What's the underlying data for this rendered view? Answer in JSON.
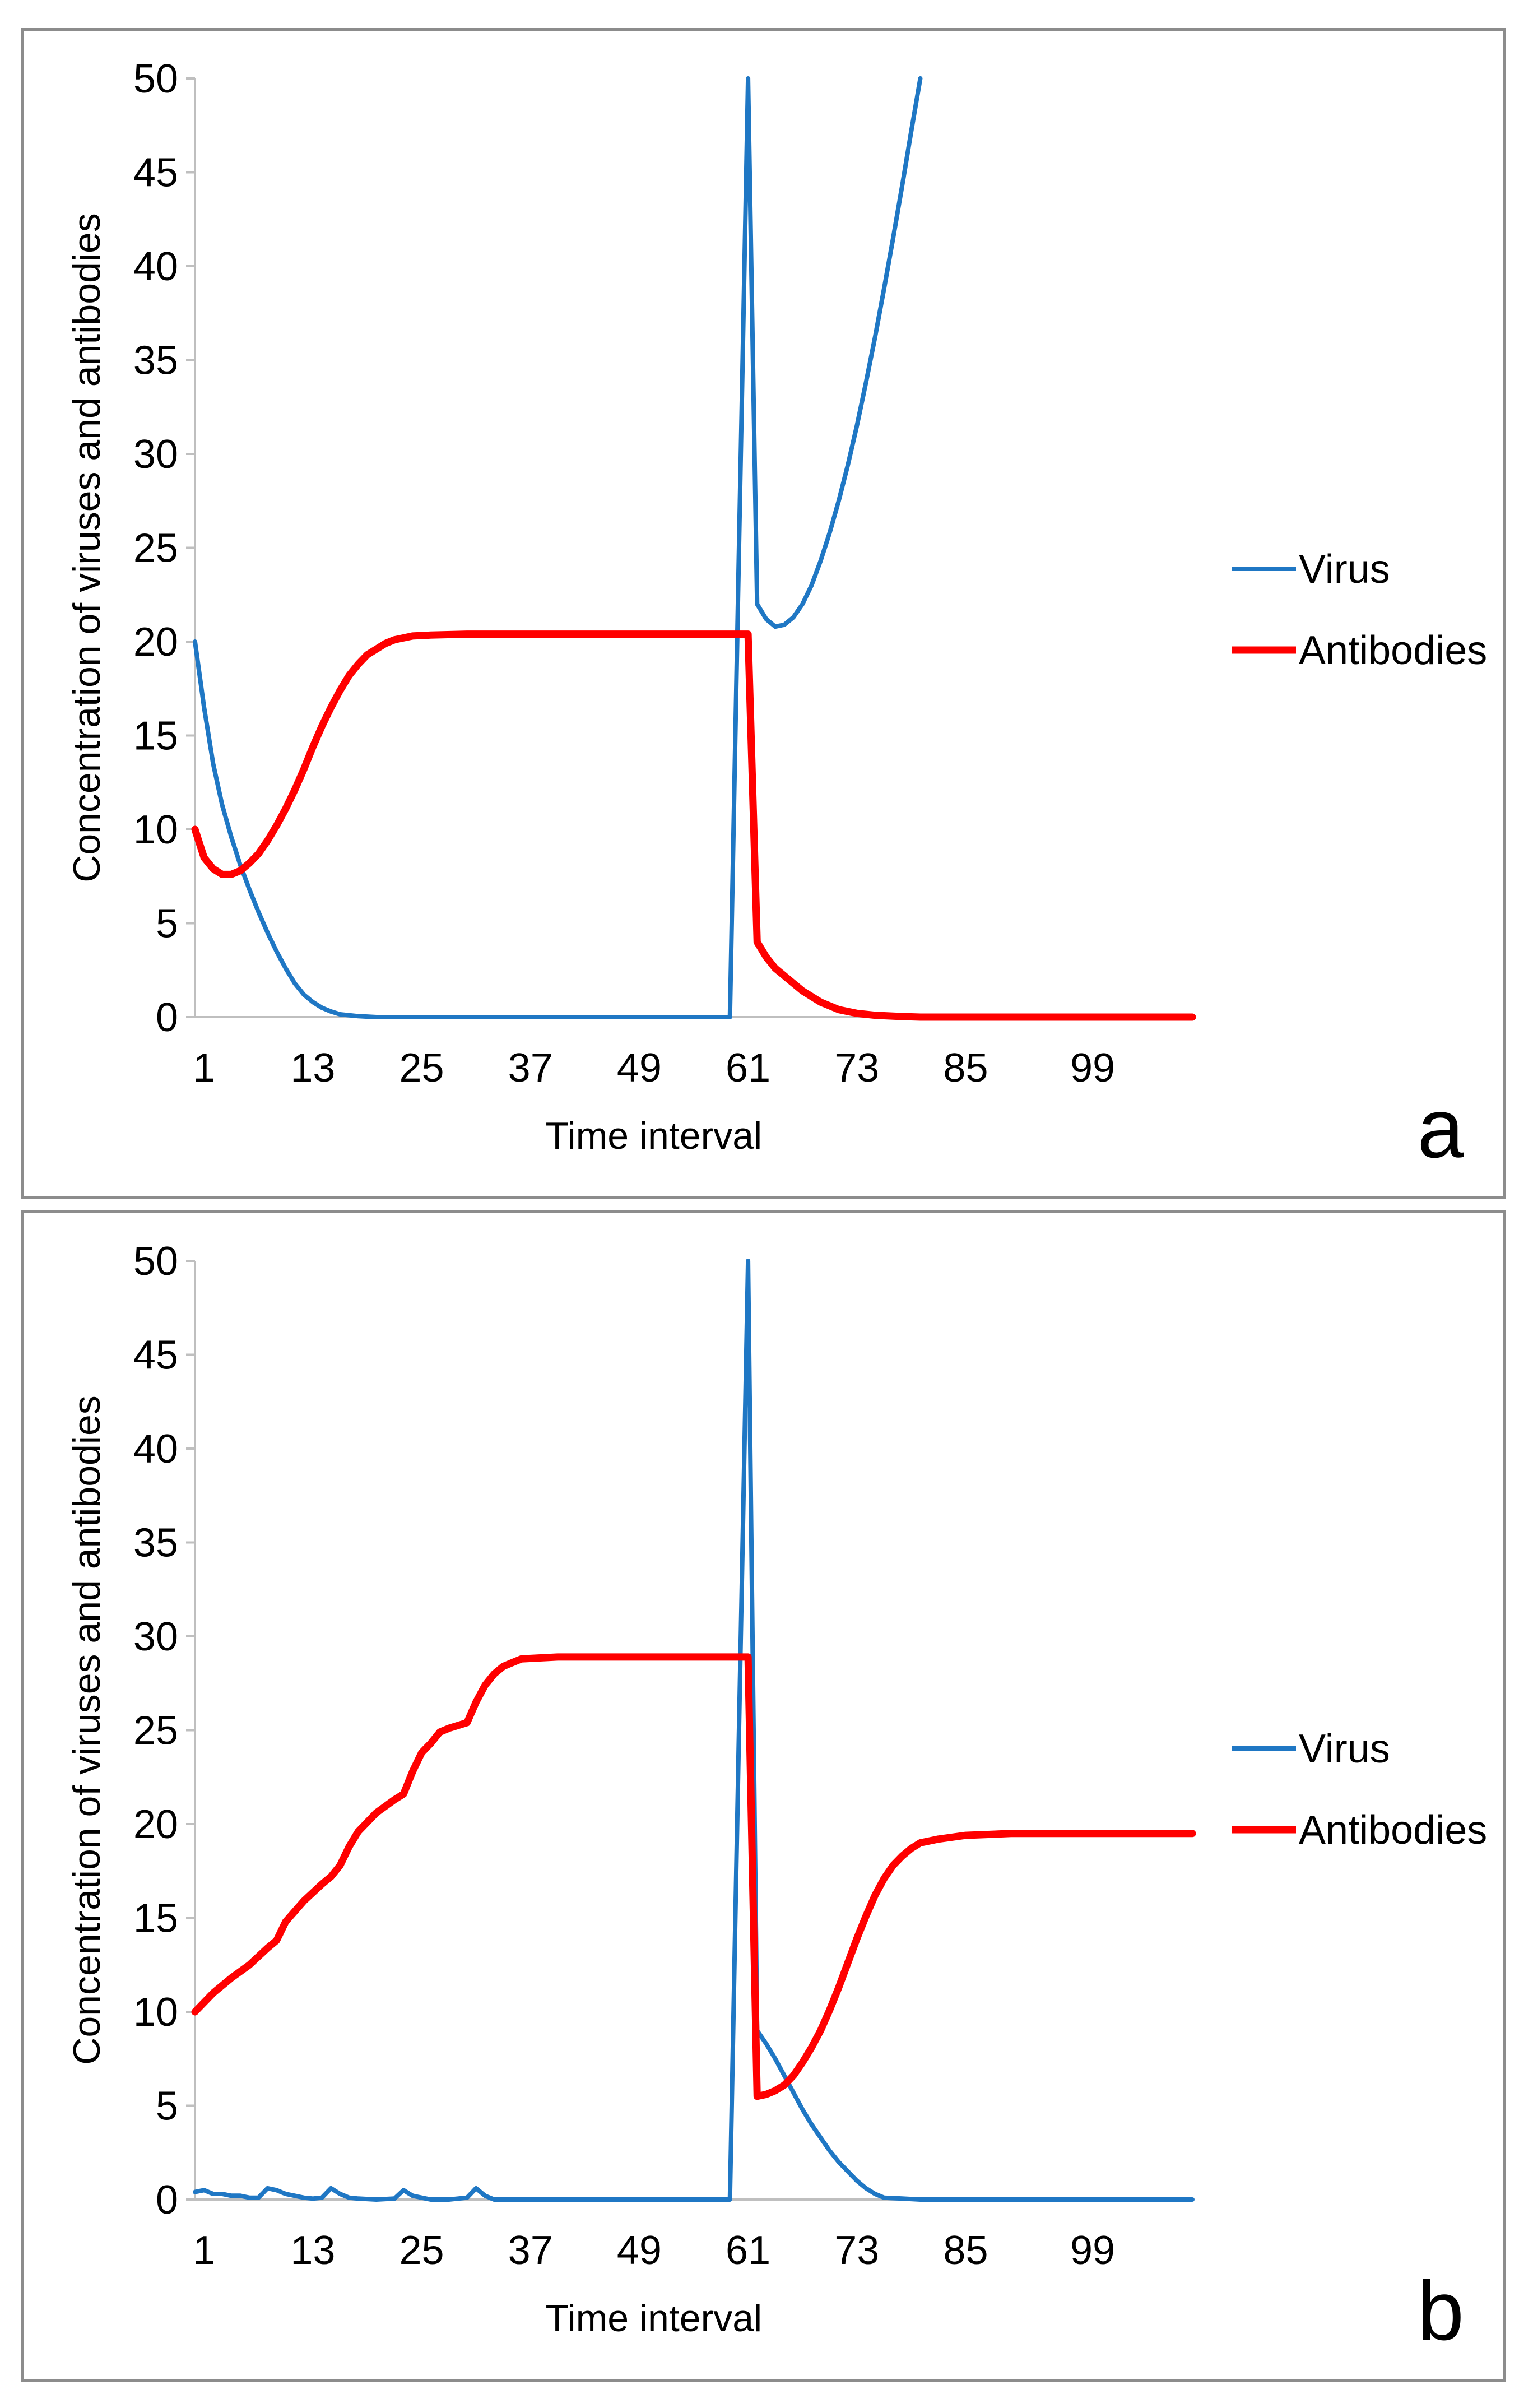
{
  "chart_data": [
    {
      "type": "line",
      "panel_label": "a",
      "xlabel": "Time interval",
      "ylabel": "Concentration of  viruses and antibodies",
      "ylim": [
        0,
        50
      ],
      "yticks": [
        "0",
        "5",
        "10",
        "15",
        "20",
        "25",
        "30",
        "35",
        "40",
        "45",
        "50"
      ],
      "xrange": [
        0,
        110
      ],
      "xtick_values": [
        1,
        13,
        25,
        37,
        49,
        61,
        73,
        85,
        99
      ],
      "xticks": [
        "1",
        "13",
        "25",
        "37",
        "49",
        "61",
        "73",
        "85",
        "99"
      ],
      "legend_position": "right",
      "series": [
        {
          "name": "Virus",
          "color": "#1f77c4",
          "points": [
            [
              0,
              20
            ],
            [
              1,
              16.5
            ],
            [
              2,
              13.5
            ],
            [
              3,
              11.3
            ],
            [
              4,
              9.6
            ],
            [
              5,
              8.1
            ],
            [
              6,
              6.8
            ],
            [
              7,
              5.6
            ],
            [
              8,
              4.5
            ],
            [
              9,
              3.5
            ],
            [
              10,
              2.6
            ],
            [
              11,
              1.8
            ],
            [
              12,
              1.2
            ],
            [
              13,
              0.8
            ],
            [
              14,
              0.5
            ],
            [
              15,
              0.3
            ],
            [
              16,
              0.15
            ],
            [
              18,
              0.05
            ],
            [
              20,
              0
            ],
            [
              40,
              0
            ],
            [
              55,
              0
            ],
            [
              59,
              0
            ],
            [
              61,
              50
            ],
            [
              62,
              22
            ],
            [
              63,
              21.2
            ],
            [
              64,
              20.8
            ],
            [
              65,
              20.9
            ],
            [
              66,
              21.3
            ],
            [
              67,
              22
            ],
            [
              68,
              23
            ],
            [
              69,
              24.3
            ],
            [
              70,
              25.8
            ],
            [
              71,
              27.5
            ],
            [
              72,
              29.4
            ],
            [
              73,
              31.5
            ],
            [
              74,
              33.8
            ],
            [
              75,
              36.2
            ],
            [
              76,
              38.8
            ],
            [
              77,
              41.5
            ],
            [
              78,
              44.3
            ],
            [
              79,
              47.2
            ],
            [
              80,
              50
            ]
          ]
        },
        {
          "name": "Antibodies",
          "color": "#ff0000",
          "points": [
            [
              0,
              10
            ],
            [
              1,
              8.5
            ],
            [
              2,
              7.9
            ],
            [
              3,
              7.6
            ],
            [
              4,
              7.6
            ],
            [
              5,
              7.8
            ],
            [
              6,
              8.2
            ],
            [
              7,
              8.7
            ],
            [
              8,
              9.4
            ],
            [
              9,
              10.2
            ],
            [
              10,
              11.1
            ],
            [
              11,
              12.1
            ],
            [
              12,
              13.2
            ],
            [
              13,
              14.4
            ],
            [
              14,
              15.5
            ],
            [
              15,
              16.5
            ],
            [
              16,
              17.4
            ],
            [
              17,
              18.2
            ],
            [
              18,
              18.8
            ],
            [
              19,
              19.3
            ],
            [
              20,
              19.6
            ],
            [
              21,
              19.9
            ],
            [
              22,
              20.1
            ],
            [
              23,
              20.2
            ],
            [
              24,
              20.3
            ],
            [
              26,
              20.35
            ],
            [
              30,
              20.4
            ],
            [
              60,
              20.4
            ],
            [
              61,
              20.4
            ],
            [
              62,
              4
            ],
            [
              63,
              3.2
            ],
            [
              64,
              2.6
            ],
            [
              65,
              2.2
            ],
            [
              66,
              1.8
            ],
            [
              67,
              1.4
            ],
            [
              68,
              1.1
            ],
            [
              69,
              0.8
            ],
            [
              70,
              0.6
            ],
            [
              71,
              0.4
            ],
            [
              72,
              0.3
            ],
            [
              73,
              0.2
            ],
            [
              75,
              0.1
            ],
            [
              78,
              0.03
            ],
            [
              80,
              0
            ],
            [
              110,
              0
            ]
          ]
        }
      ]
    },
    {
      "type": "line",
      "panel_label": "b",
      "xlabel": "Time interval",
      "ylabel": "Concentration of  viruses and antibodies",
      "ylim": [
        0,
        50
      ],
      "yticks": [
        "0",
        "5",
        "10",
        "15",
        "20",
        "25",
        "30",
        "35",
        "40",
        "45",
        "50"
      ],
      "xrange": [
        0,
        110
      ],
      "xtick_values": [
        1,
        13,
        25,
        37,
        49,
        61,
        73,
        85,
        99
      ],
      "xticks": [
        "1",
        "13",
        "25",
        "37",
        "49",
        "61",
        "73",
        "85",
        "99"
      ],
      "legend_position": "right",
      "series": [
        {
          "name": "Virus",
          "color": "#1f77c4",
          "points": [
            [
              0,
              0.4
            ],
            [
              1,
              0.5
            ],
            [
              2,
              0.3
            ],
            [
              3,
              0.3
            ],
            [
              4,
              0.2
            ],
            [
              5,
              0.2
            ],
            [
              6,
              0.1
            ],
            [
              7,
              0.1
            ],
            [
              8,
              0.6
            ],
            [
              9,
              0.5
            ],
            [
              10,
              0.3
            ],
            [
              11,
              0.2
            ],
            [
              12,
              0.1
            ],
            [
              13,
              0.05
            ],
            [
              14,
              0.1
            ],
            [
              15,
              0.6
            ],
            [
              16,
              0.3
            ],
            [
              17,
              0.1
            ],
            [
              18,
              0.05
            ],
            [
              20,
              0
            ],
            [
              22,
              0.05
            ],
            [
              23,
              0.5
            ],
            [
              24,
              0.2
            ],
            [
              25,
              0.1
            ],
            [
              26,
              0
            ],
            [
              28,
              0
            ],
            [
              30,
              0.1
            ],
            [
              31,
              0.6
            ],
            [
              32,
              0.2
            ],
            [
              33,
              0
            ],
            [
              40,
              0
            ],
            [
              50,
              0
            ],
            [
              59,
              0
            ],
            [
              61,
              50
            ],
            [
              62,
              9
            ],
            [
              63,
              8.3
            ],
            [
              64,
              7.5
            ],
            [
              65,
              6.6
            ],
            [
              66,
              5.7
            ],
            [
              67,
              4.8
            ],
            [
              68,
              4
            ],
            [
              69,
              3.3
            ],
            [
              70,
              2.6
            ],
            [
              71,
              2
            ],
            [
              72,
              1.5
            ],
            [
              73,
              1
            ],
            [
              74,
              0.6
            ],
            [
              75,
              0.3
            ],
            [
              76,
              0.1
            ],
            [
              78,
              0.05
            ],
            [
              80,
              0
            ],
            [
              110,
              0
            ]
          ]
        },
        {
          "name": "Antibodies",
          "color": "#ff0000",
          "points": [
            [
              0,
              10
            ],
            [
              2,
              11
            ],
            [
              4,
              11.8
            ],
            [
              6,
              12.5
            ],
            [
              8,
              13.4
            ],
            [
              9,
              13.8
            ],
            [
              10,
              14.8
            ],
            [
              12,
              15.9
            ],
            [
              14,
              16.8
            ],
            [
              15,
              17.2
            ],
            [
              16,
              17.8
            ],
            [
              17,
              18.8
            ],
            [
              18,
              19.6
            ],
            [
              20,
              20.6
            ],
            [
              22,
              21.3
            ],
            [
              23,
              21.6
            ],
            [
              24,
              22.8
            ],
            [
              25,
              23.8
            ],
            [
              26,
              24.3
            ],
            [
              27,
              24.9
            ],
            [
              28,
              25.1
            ],
            [
              30,
              25.4
            ],
            [
              31,
              26.5
            ],
            [
              32,
              27.4
            ],
            [
              33,
              28
            ],
            [
              34,
              28.4
            ],
            [
              35,
              28.6
            ],
            [
              36,
              28.8
            ],
            [
              40,
              28.9
            ],
            [
              60,
              28.9
            ],
            [
              61,
              28.9
            ],
            [
              62,
              5.5
            ],
            [
              63,
              5.6
            ],
            [
              64,
              5.8
            ],
            [
              65,
              6.1
            ],
            [
              66,
              6.6
            ],
            [
              67,
              7.3
            ],
            [
              68,
              8.1
            ],
            [
              69,
              9
            ],
            [
              70,
              10.1
            ],
            [
              71,
              11.3
            ],
            [
              72,
              12.6
            ],
            [
              73,
              13.9
            ],
            [
              74,
              15.1
            ],
            [
              75,
              16.2
            ],
            [
              76,
              17.1
            ],
            [
              77,
              17.8
            ],
            [
              78,
              18.3
            ],
            [
              79,
              18.7
            ],
            [
              80,
              19
            ],
            [
              82,
              19.2
            ],
            [
              85,
              19.4
            ],
            [
              90,
              19.5
            ],
            [
              110,
              19.5
            ]
          ]
        }
      ]
    }
  ]
}
